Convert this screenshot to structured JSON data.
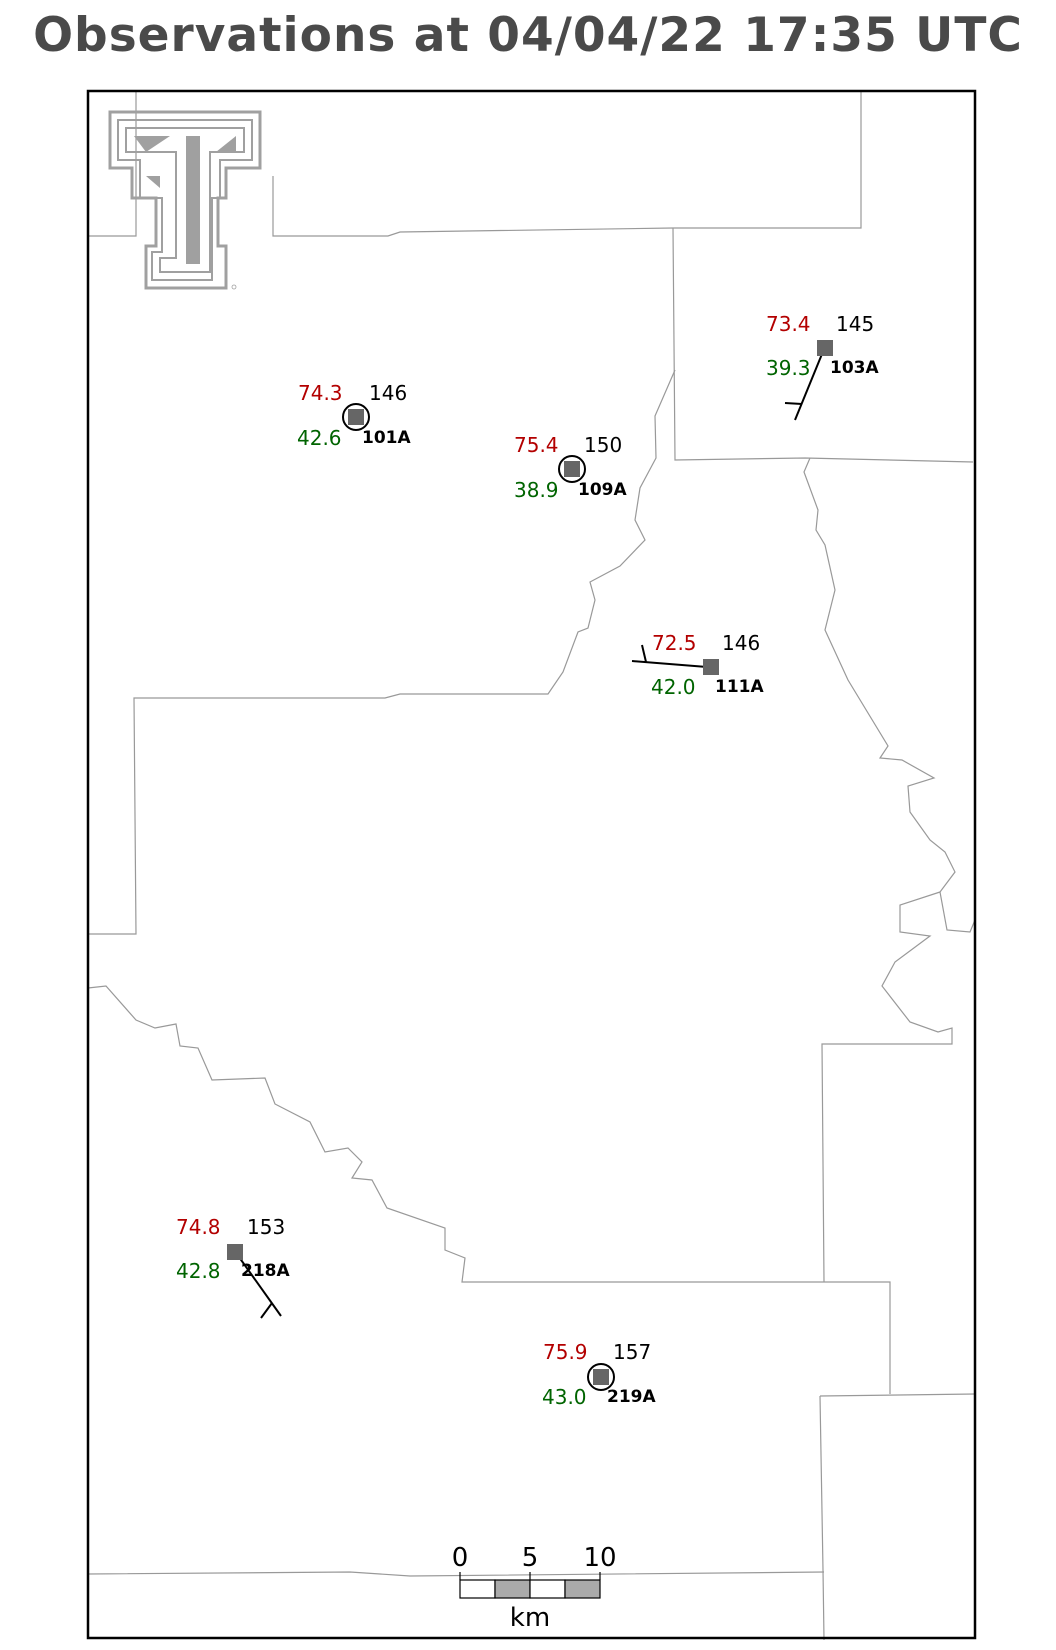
{
  "title": "Observations at 04/04/22 17:35 UTC",
  "logo": {
    "name": "texas-tech-double-t-logo",
    "color": "#a0a0a0"
  },
  "colors": {
    "temperature": "#b30000",
    "dewpoint": "#006400",
    "station_marker": "#666666",
    "boundary": "#999999"
  },
  "stations": [
    {
      "id": "101A",
      "temp": "74.3",
      "dewpoint": "42.6",
      "value": "146",
      "calm": true
    },
    {
      "id": "109A",
      "temp": "75.4",
      "dewpoint": "38.9",
      "value": "150",
      "calm": true
    },
    {
      "id": "103A",
      "temp": "73.4",
      "dewpoint": "39.3",
      "value": "145",
      "calm": false
    },
    {
      "id": "111A",
      "temp": "72.5",
      "dewpoint": "42.0",
      "value": "146",
      "calm": false
    },
    {
      "id": "218A",
      "temp": "74.8",
      "dewpoint": "42.8",
      "value": "153",
      "calm": false
    },
    {
      "id": "219A",
      "temp": "75.9",
      "dewpoint": "43.0",
      "value": "157",
      "calm": true
    }
  ],
  "scale_bar": {
    "ticks": [
      "0",
      "5",
      "10"
    ],
    "unit": "km"
  }
}
